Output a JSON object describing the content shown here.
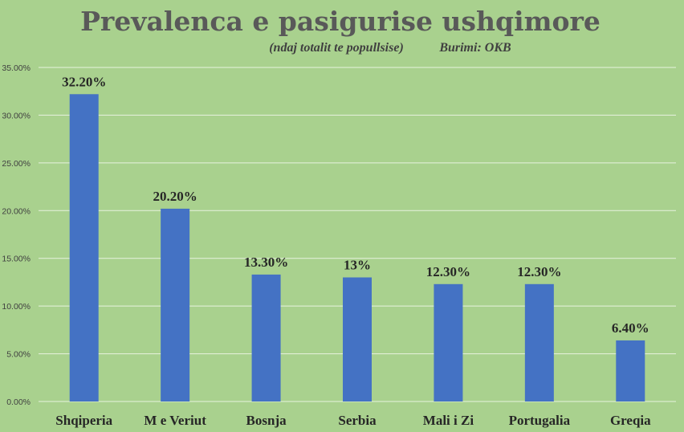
{
  "chart_data": {
    "type": "bar",
    "title": "Prevalenca e pasigurise ushqimore",
    "subtitle": "(ndaj totalit te popullsise)",
    "source": "Burimi: OKB",
    "categories": [
      "Shqiperia",
      "M e Veriut",
      "Bosnja",
      "Serbia",
      "Mali i Zi",
      "Portugalia",
      "Greqia"
    ],
    "values": [
      32.2,
      20.2,
      13.3,
      13,
      12.3,
      12.3,
      6.4
    ],
    "data_labels": [
      "32.20%",
      "20.20%",
      "13.30%",
      "13%",
      "12.30%",
      "12.30%",
      "6.40%"
    ],
    "ylim": [
      0,
      35
    ],
    "yticks": [
      0,
      5,
      10,
      15,
      20,
      25,
      30,
      35
    ],
    "ytick_labels": [
      "0.00%",
      "5.00%",
      "10.00%",
      "15.00%",
      "20.00%",
      "25.00%",
      "30.00%",
      "35.00%"
    ],
    "grid": true,
    "legend": "none",
    "colors": {
      "bar": "#4472c4",
      "background": "#a9d18e",
      "grid": "#e8f2df"
    }
  }
}
